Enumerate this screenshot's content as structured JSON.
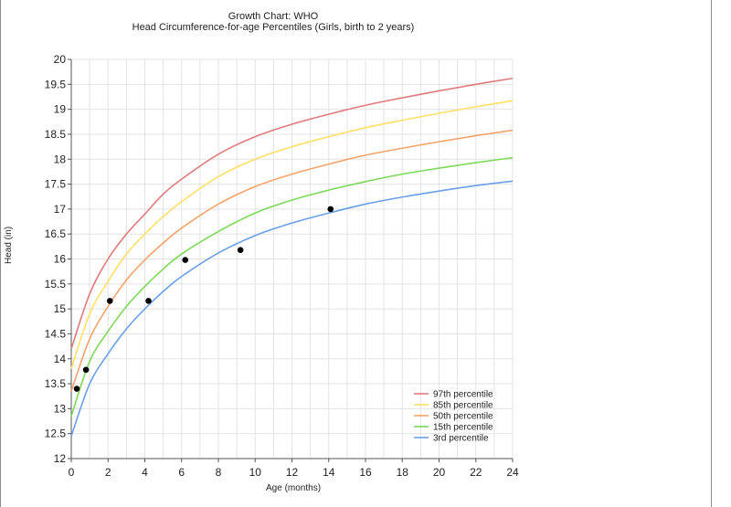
{
  "chart_data": {
    "type": "line",
    "title": "Growth Chart: WHO",
    "subtitle": "Head Circumference-for-age Percentiles (Girls, birth to 2 years)",
    "xlabel": "Age (months)",
    "ylabel": "Head (in)",
    "xlim": [
      0,
      24
    ],
    "ylim": [
      12,
      20
    ],
    "xticks": [
      0,
      2,
      4,
      6,
      8,
      10,
      12,
      14,
      16,
      18,
      20,
      22,
      24
    ],
    "yticks": [
      12,
      12.5,
      13,
      13.5,
      14,
      14.5,
      15,
      15.5,
      16,
      16.5,
      17,
      17.5,
      18,
      18.5,
      19,
      19.5,
      20
    ],
    "grid": true,
    "legend_position": "bottom-right",
    "x": [
      0,
      1,
      2,
      3,
      4,
      5,
      6,
      8,
      10,
      12,
      14,
      16,
      18,
      20,
      22,
      24
    ],
    "series": [
      {
        "name": "97th percentile",
        "color": "#e07b7b",
        "values": [
          14.2,
          15.3,
          16.0,
          16.5,
          16.9,
          17.3,
          17.6,
          18.1,
          18.45,
          18.7,
          18.9,
          19.08,
          19.23,
          19.37,
          19.5,
          19.62
        ]
      },
      {
        "name": "85th percentile",
        "color": "#ffe066",
        "values": [
          13.8,
          14.9,
          15.55,
          16.1,
          16.5,
          16.85,
          17.15,
          17.65,
          18.0,
          18.25,
          18.45,
          18.63,
          18.78,
          18.92,
          19.05,
          19.17
        ]
      },
      {
        "name": "50th percentile",
        "color": "#f4a36b",
        "values": [
          13.35,
          14.4,
          15.05,
          15.58,
          15.98,
          16.32,
          16.62,
          17.1,
          17.45,
          17.7,
          17.9,
          18.08,
          18.22,
          18.35,
          18.47,
          18.58
        ]
      },
      {
        "name": "15th percentile",
        "color": "#7dd957",
        "values": [
          12.85,
          13.95,
          14.55,
          15.05,
          15.45,
          15.8,
          16.1,
          16.55,
          16.92,
          17.18,
          17.38,
          17.55,
          17.7,
          17.82,
          17.93,
          18.03
        ]
      },
      {
        "name": "3rd percentile",
        "color": "#6a9fe8",
        "values": [
          12.45,
          13.5,
          14.1,
          14.6,
          15.0,
          15.35,
          15.65,
          16.12,
          16.47,
          16.72,
          16.92,
          17.1,
          17.24,
          17.36,
          17.47,
          17.56
        ]
      }
    ],
    "measurements": [
      {
        "x": 0.3,
        "y": 13.4
      },
      {
        "x": 0.8,
        "y": 13.78
      },
      {
        "x": 2.1,
        "y": 15.16
      },
      {
        "x": 4.2,
        "y": 15.16
      },
      {
        "x": 6.2,
        "y": 15.98
      },
      {
        "x": 9.2,
        "y": 16.18
      },
      {
        "x": 14.1,
        "y": 17.0
      }
    ]
  }
}
